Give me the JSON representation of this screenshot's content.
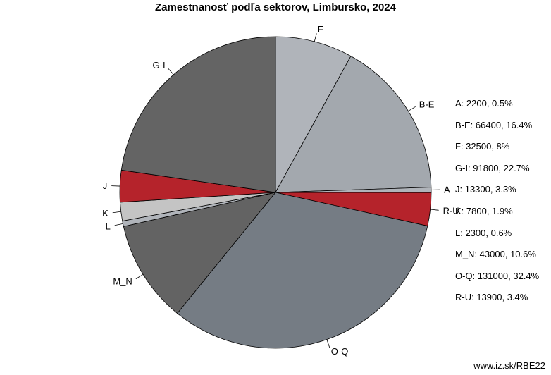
{
  "chart_data": {
    "type": "pie",
    "title": "Zamestnanosť podľa sektorov, Limbursko, 2024",
    "slices": [
      {
        "label": "F",
        "value": 32500,
        "percent": "8%",
        "color": "#b0b4ba"
      },
      {
        "label": "B-E",
        "value": 66400,
        "percent": "16.4%",
        "color": "#a3a8ae"
      },
      {
        "label": "A",
        "value": 2200,
        "percent": "0.5%",
        "color": "#b0b4ba"
      },
      {
        "label": "R-U",
        "value": 13900,
        "percent": "3.4%",
        "color": "#b5232b"
      },
      {
        "label": "O-Q",
        "value": 131000,
        "percent": "32.4%",
        "color": "#757c84"
      },
      {
        "label": "M_N",
        "value": 43000,
        "percent": "10.6%",
        "color": "#636363"
      },
      {
        "label": "L",
        "value": 2300,
        "percent": "0.6%",
        "color": "#b0b4ba"
      },
      {
        "label": "K",
        "value": 7800,
        "percent": "1.9%",
        "color": "#c4c4c4"
      },
      {
        "label": "J",
        "value": 13300,
        "percent": "3.3%",
        "color": "#b5232b"
      },
      {
        "label": "G-I",
        "value": 91800,
        "percent": "22.7%",
        "color": "#646464"
      }
    ],
    "legend": [
      "A: 2200, 0.5%",
      "B-E: 66400, 16.4%",
      "F: 32500, 8%",
      "G-I: 91800, 22.7%",
      "J: 13300, 3.3%",
      "K: 7800, 1.9%",
      "L: 2300, 0.6%",
      "M_N: 43000, 10.6%",
      "O-Q: 131000, 32.4%",
      "R-U: 13900, 3.4%"
    ],
    "legend_position": "right"
  },
  "footer": {
    "credit": "www.iz.sk/RBE22"
  }
}
